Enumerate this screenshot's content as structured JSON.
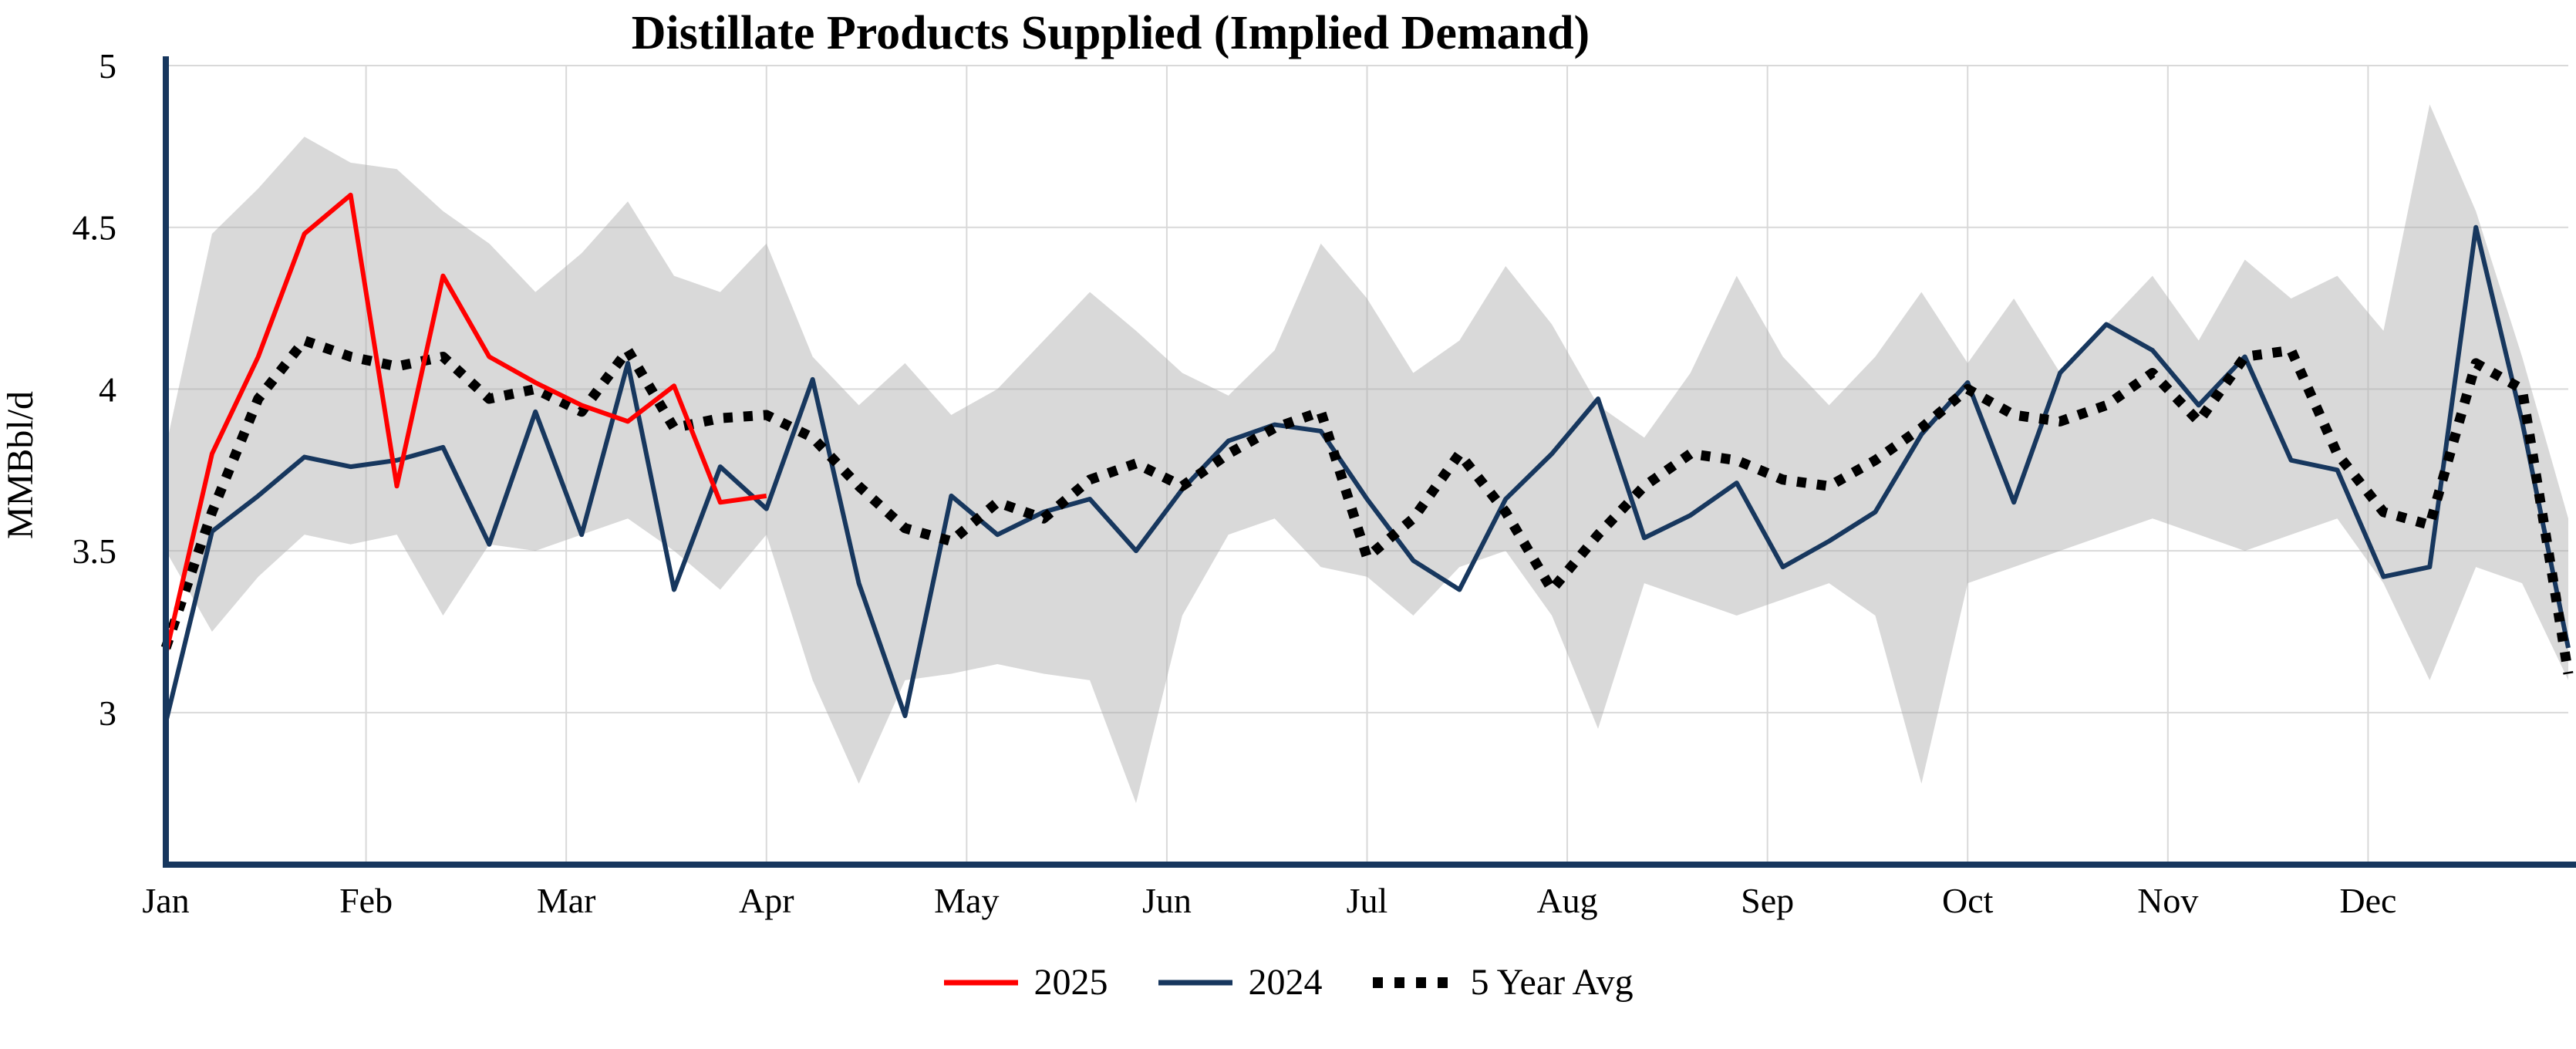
{
  "chart_data": {
    "type": "line",
    "title": "Distillate Products Supplied (Implied Demand)",
    "ylabel": "MMBbl/d",
    "x_description": "weekly observations across one year",
    "x_tick_labels": [
      "Jan",
      "Feb",
      "Mar",
      "Apr",
      "May",
      "Jun",
      "Jul",
      "Aug",
      "Sep",
      "Oct",
      "Nov",
      "Dec"
    ],
    "y_ticks": [
      5,
      4.5,
      4,
      3.5,
      3
    ],
    "ylim": [
      2.53,
      5
    ],
    "grid": true,
    "legend_position": "bottom-center",
    "colors": {
      "grid": "#d9d9d9",
      "spine": "#17375e",
      "background": "#ffffff"
    },
    "band": {
      "name": "5-year range (shaded)",
      "color": "#aaaaaa",
      "opacity": 0.45,
      "upper": [
        3.82,
        4.48,
        4.62,
        4.78,
        4.7,
        4.68,
        4.55,
        4.45,
        4.3,
        4.42,
        4.58,
        4.35,
        4.3,
        4.45,
        4.1,
        3.95,
        4.08,
        3.92,
        4.0,
        4.15,
        4.3,
        4.18,
        4.05,
        3.98,
        4.12,
        4.45,
        4.28,
        4.05,
        4.15,
        4.38,
        4.2,
        3.95,
        3.85,
        4.05,
        4.35,
        4.1,
        3.95,
        4.1,
        4.3,
        4.08,
        4.28,
        4.05,
        4.2,
        4.35,
        4.15,
        4.4,
        4.28,
        4.35,
        4.18,
        4.88,
        4.55,
        4.1,
        3.6
      ],
      "lower": [
        3.5,
        3.25,
        3.42,
        3.55,
        3.52,
        3.55,
        3.3,
        3.52,
        3.5,
        3.55,
        3.6,
        3.5,
        3.38,
        3.55,
        3.1,
        2.78,
        3.1,
        3.12,
        3.15,
        3.12,
        3.1,
        2.72,
        3.3,
        3.55,
        3.6,
        3.45,
        3.42,
        3.3,
        3.45,
        3.5,
        3.3,
        2.95,
        3.4,
        3.35,
        3.3,
        3.35,
        3.4,
        3.3,
        2.78,
        3.4,
        3.45,
        3.5,
        3.55,
        3.6,
        3.55,
        3.5,
        3.55,
        3.6,
        3.4,
        3.1,
        3.45,
        3.4,
        3.1
      ]
    },
    "series": [
      {
        "name": "2025",
        "color": "#ff0000",
        "style": "solid",
        "width": 6,
        "values": [
          3.18,
          3.8,
          4.1,
          4.48,
          4.6,
          3.7,
          4.35,
          4.1,
          4.02,
          3.95,
          3.9,
          4.01,
          3.65,
          3.67
        ]
      },
      {
        "name": "2024",
        "color": "#17375e",
        "style": "solid",
        "width": 6,
        "values": [
          2.97,
          3.56,
          3.67,
          3.79,
          3.76,
          3.78,
          3.82,
          3.52,
          3.93,
          3.55,
          4.08,
          3.38,
          3.76,
          3.63,
          4.03,
          3.4,
          2.99,
          3.67,
          3.55,
          3.62,
          3.66,
          3.5,
          3.69,
          3.84,
          3.89,
          3.87,
          3.66,
          3.47,
          3.38,
          3.66,
          3.8,
          3.97,
          3.54,
          3.61,
          3.71,
          3.45,
          3.53,
          3.62,
          3.86,
          4.02,
          3.65,
          4.05,
          4.2,
          4.12,
          3.95,
          4.1,
          3.78,
          3.75,
          3.42,
          3.45,
          4.5,
          3.9,
          3.2
        ]
      },
      {
        "name": "5 Year Avg",
        "color": "#000000",
        "style": "dotted",
        "width": 13,
        "values": [
          3.2,
          3.62,
          3.97,
          4.15,
          4.1,
          4.07,
          4.1,
          3.97,
          4.0,
          3.93,
          4.12,
          3.88,
          3.91,
          3.92,
          3.85,
          3.7,
          3.57,
          3.53,
          3.65,
          3.6,
          3.72,
          3.77,
          3.7,
          3.8,
          3.88,
          3.93,
          3.48,
          3.6,
          3.8,
          3.62,
          3.38,
          3.55,
          3.7,
          3.8,
          3.78,
          3.72,
          3.7,
          3.78,
          3.88,
          4.0,
          3.92,
          3.9,
          3.95,
          4.05,
          3.9,
          4.1,
          4.12,
          3.8,
          3.62,
          3.58,
          4.08,
          4.0,
          3.12
        ]
      }
    ]
  }
}
